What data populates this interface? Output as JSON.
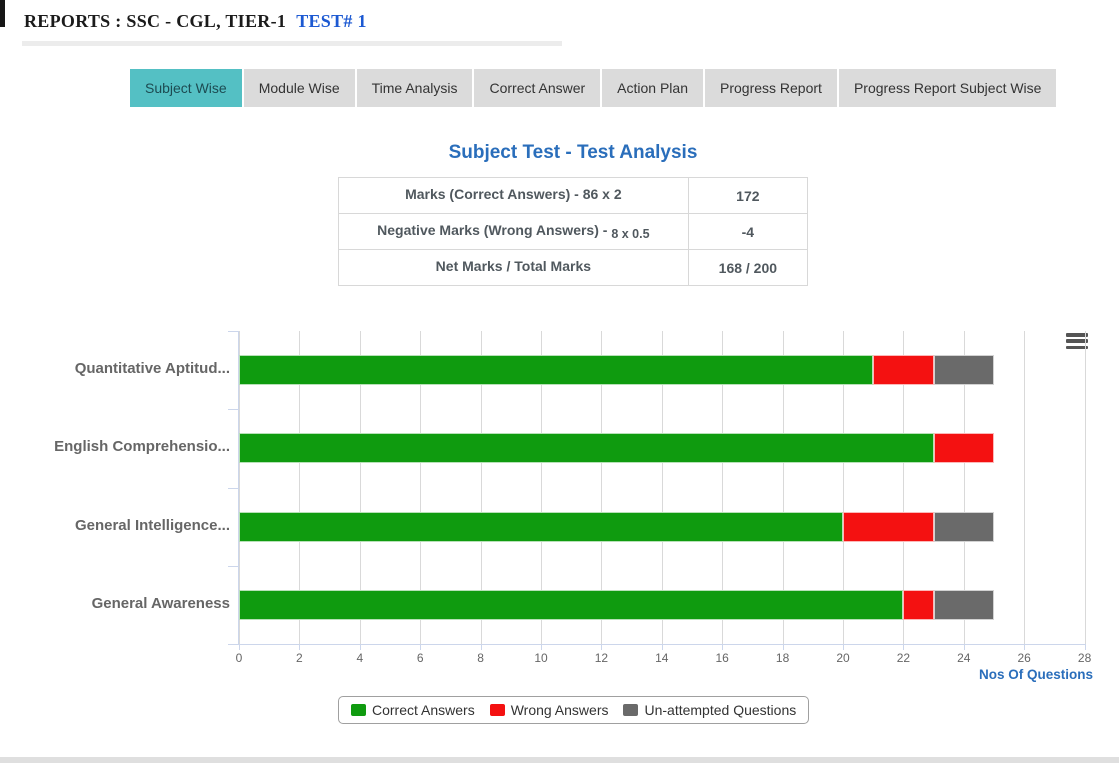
{
  "header": {
    "title": "REPORTS : SSC - CGL, TIER-1",
    "test_label": "TEST# 1"
  },
  "tabs": [
    {
      "label": "Subject Wise",
      "active": true
    },
    {
      "label": "Module Wise",
      "active": false
    },
    {
      "label": "Time Analysis",
      "active": false
    },
    {
      "label": "Correct Answer",
      "active": false
    },
    {
      "label": "Action Plan",
      "active": false
    },
    {
      "label": "Progress Report",
      "active": false
    },
    {
      "label": "Progress Report Subject Wise",
      "active": false
    }
  ],
  "analysis": {
    "title": "Subject Test - Test Analysis",
    "rows": [
      {
        "label": "Marks (Correct Answers) - 86 x 2",
        "label_sub": "",
        "value": "172"
      },
      {
        "label": "Negative Marks (Wrong Answers) - ",
        "label_sub": "8 x 0.5",
        "value": "-4"
      },
      {
        "label": "Net Marks / Total Marks",
        "label_sub": "",
        "value": "168 / 200"
      }
    ]
  },
  "chart_data": {
    "type": "bar",
    "orientation": "horizontal",
    "stacked": true,
    "categories": [
      "Quantitative Aptitud...",
      "English Comprehensio...",
      "General Intelligence...",
      "General Awareness"
    ],
    "series": [
      {
        "name": "Correct Answers",
        "color": "#0f9b0f",
        "values": [
          21,
          23,
          20,
          22
        ]
      },
      {
        "name": "Wrong Answers",
        "color": "#f41111",
        "values": [
          2,
          2,
          3,
          1
        ]
      },
      {
        "name": "Un-attempted Questions",
        "color": "#6a6a6a",
        "values": [
          2,
          0,
          2,
          2
        ]
      }
    ],
    "xlabel": "Nos Of Questions",
    "xlim": [
      0,
      28
    ],
    "tick_interval": 2,
    "grid": true,
    "legend_position": "bottom",
    "menu_icon": "hamburger-icon"
  }
}
